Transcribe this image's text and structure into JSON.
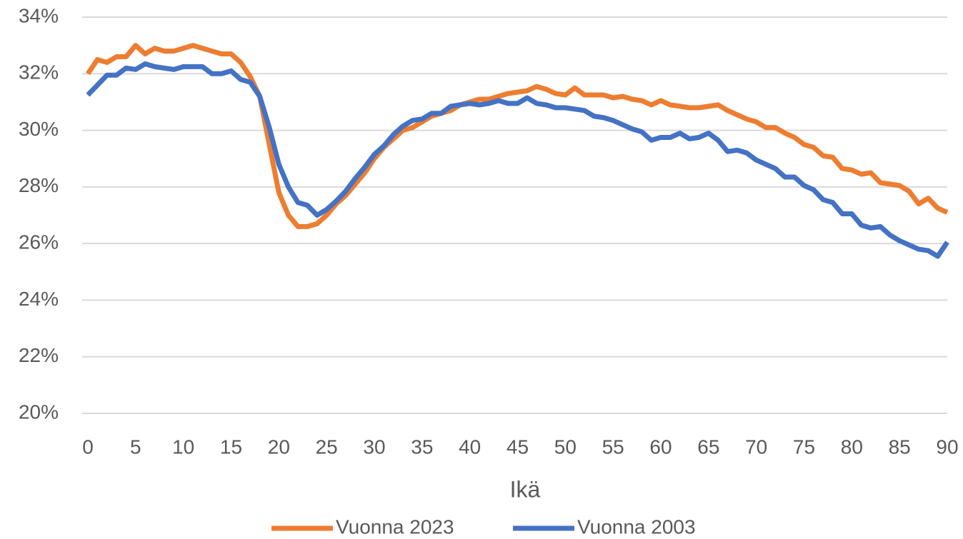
{
  "chart_data": {
    "type": "line",
    "x_label": "Ikä",
    "x": [
      0,
      1,
      2,
      3,
      4,
      5,
      6,
      7,
      8,
      9,
      10,
      11,
      12,
      13,
      14,
      15,
      16,
      17,
      18,
      19,
      20,
      21,
      22,
      23,
      24,
      25,
      26,
      27,
      28,
      29,
      30,
      31,
      32,
      33,
      34,
      35,
      36,
      37,
      38,
      39,
      40,
      41,
      42,
      43,
      44,
      45,
      46,
      47,
      48,
      49,
      50,
      51,
      52,
      53,
      54,
      55,
      56,
      57,
      58,
      59,
      60,
      61,
      62,
      63,
      64,
      65,
      66,
      67,
      68,
      69,
      70,
      71,
      72,
      73,
      74,
      75,
      76,
      77,
      78,
      79,
      80,
      81,
      82,
      83,
      84,
      85,
      86,
      87,
      88,
      89,
      90
    ],
    "series": [
      {
        "name": "Vuonna 2023",
        "color": "#ED7D31",
        "values": [
          32.0,
          32.5,
          32.4,
          32.6,
          32.6,
          33.0,
          32.7,
          32.9,
          32.8,
          32.8,
          32.9,
          33.0,
          32.9,
          32.8,
          32.7,
          32.7,
          32.4,
          31.9,
          31.2,
          29.5,
          27.8,
          27.0,
          26.6,
          26.6,
          26.7,
          27.0,
          27.4,
          27.7,
          28.1,
          28.5,
          29.0,
          29.4,
          29.7,
          30.0,
          30.1,
          30.3,
          30.5,
          30.6,
          30.7,
          30.9,
          31.0,
          31.1,
          31.1,
          31.2,
          31.3,
          31.35,
          31.4,
          31.55,
          31.45,
          31.3,
          31.25,
          31.5,
          31.25,
          31.25,
          31.25,
          31.15,
          31.2,
          31.1,
          31.05,
          30.9,
          31.05,
          30.9,
          30.85,
          30.8,
          30.8,
          30.85,
          30.9,
          30.7,
          30.55,
          30.4,
          30.3,
          30.1,
          30.1,
          29.9,
          29.75,
          29.5,
          29.4,
          29.1,
          29.05,
          28.65,
          28.6,
          28.45,
          28.5,
          28.15,
          28.1,
          28.05,
          27.85,
          27.4,
          27.6,
          27.25,
          27.1
        ]
      },
      {
        "name": "Vuonna 2003",
        "color": "#4472C4",
        "values": [
          31.25,
          31.6,
          31.95,
          31.95,
          32.2,
          32.15,
          32.35,
          32.25,
          32.2,
          32.15,
          32.25,
          32.25,
          32.25,
          32.0,
          32.0,
          32.1,
          31.8,
          31.7,
          31.2,
          30.1,
          28.8,
          28.0,
          27.45,
          27.35,
          27.0,
          27.2,
          27.5,
          27.85,
          28.3,
          28.7,
          29.15,
          29.45,
          29.85,
          30.15,
          30.35,
          30.4,
          30.6,
          30.6,
          30.85,
          30.9,
          30.95,
          30.9,
          30.95,
          31.05,
          30.95,
          30.95,
          31.15,
          30.95,
          30.9,
          30.8,
          30.8,
          30.75,
          30.7,
          30.5,
          30.45,
          30.35,
          30.2,
          30.05,
          29.95,
          29.65,
          29.75,
          29.75,
          29.9,
          29.7,
          29.75,
          29.9,
          29.65,
          29.25,
          29.3,
          29.2,
          28.95,
          28.8,
          28.65,
          28.35,
          28.35,
          28.05,
          27.9,
          27.55,
          27.45,
          27.05,
          27.05,
          26.65,
          26.55,
          26.6,
          26.3,
          26.1,
          25.95,
          25.8,
          25.75,
          25.55,
          26.05
        ]
      }
    ],
    "xlim": [
      0,
      90
    ],
    "xticks": [
      0,
      5,
      10,
      15,
      20,
      25,
      30,
      35,
      40,
      45,
      50,
      55,
      60,
      65,
      70,
      75,
      80,
      85,
      90
    ],
    "ylim": [
      20,
      34
    ],
    "yticks": [
      {
        "value": 20,
        "label": "20%"
      },
      {
        "value": 22,
        "label": "22%"
      },
      {
        "value": 24,
        "label": "24%"
      },
      {
        "value": 26,
        "label": "26%"
      },
      {
        "value": 28,
        "label": "28%"
      },
      {
        "value": 30,
        "label": "30%"
      },
      {
        "value": 32,
        "label": "32%"
      },
      {
        "value": 34,
        "label": "34%"
      }
    ],
    "grid": true,
    "legend": "bottom"
  }
}
